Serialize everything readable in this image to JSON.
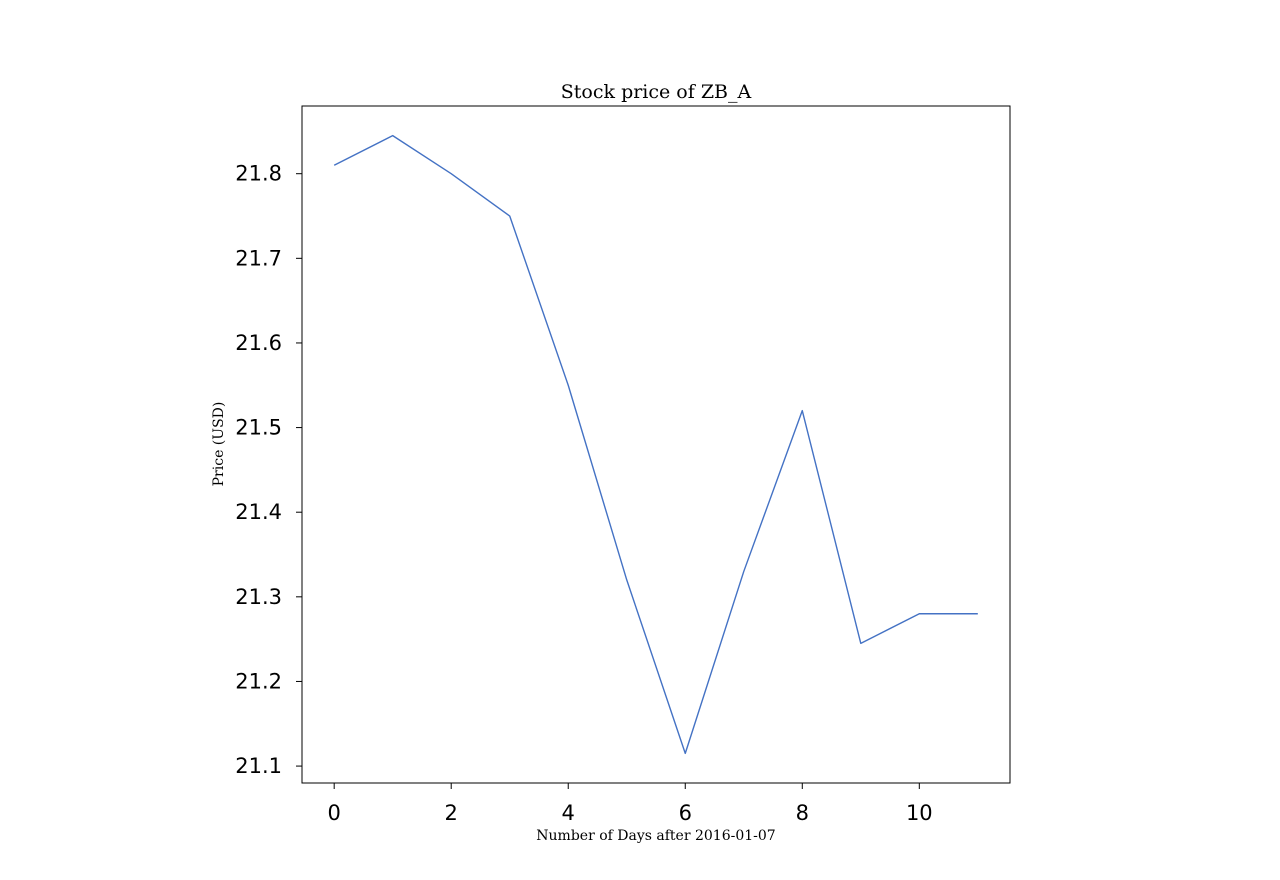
{
  "chart_data": {
    "type": "line",
    "title": "Stock price of ZB_A",
    "xlabel": "Number of Days after 2016-01-07",
    "ylabel": "Price (USD)",
    "x": [
      0,
      1,
      2,
      3,
      4,
      5,
      6,
      7,
      8,
      9,
      10,
      11
    ],
    "series": [
      {
        "values": [
          21.81,
          21.845,
          21.8,
          21.75,
          21.55,
          21.32,
          21.115,
          21.33,
          21.52,
          21.245,
          21.28,
          21.28
        ],
        "color": "#4472c4"
      }
    ],
    "xlim": [
      -0.55,
      11.55
    ],
    "ylim": [
      21.08,
      21.88
    ],
    "xticks": [
      0,
      2,
      4,
      6,
      8,
      10
    ],
    "yticks": [
      21.1,
      21.2,
      21.3,
      21.4,
      21.5,
      21.6,
      21.7,
      21.8
    ],
    "grid": false,
    "legend": "none"
  }
}
